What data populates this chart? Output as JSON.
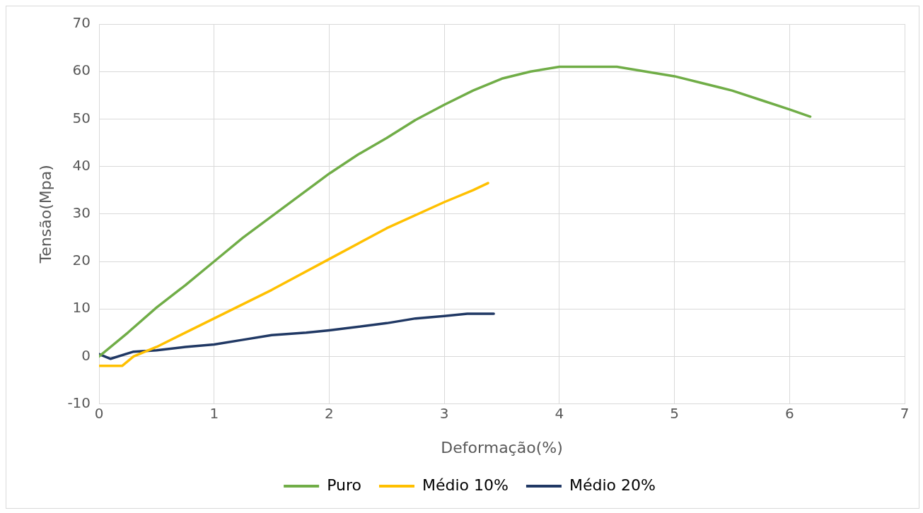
{
  "chart_data": {
    "type": "line",
    "xlabel": "Deformação(%)",
    "ylabel": "Tensão(Mpa)",
    "xlim": [
      0,
      7
    ],
    "xticks": [
      0,
      1,
      2,
      3,
      4,
      5,
      6,
      7
    ],
    "ylim": [
      -10,
      70
    ],
    "yticks": [
      -10,
      0,
      10,
      20,
      30,
      40,
      50,
      60,
      70
    ],
    "grid": true,
    "legend": "bottom",
    "marker": "none",
    "line_style": "solid",
    "series": [
      {
        "name": "Puro",
        "color": "#70ad47",
        "x": [
          0,
          0.25,
          0.5,
          0.75,
          1,
          1.25,
          1.5,
          1.75,
          2,
          2.25,
          2.5,
          2.75,
          3,
          3.25,
          3.5,
          3.75,
          4,
          4.25,
          4.5,
          4.75,
          5,
          5.25,
          5.5,
          5.75,
          6,
          6.18
        ],
        "values": [
          0,
          5,
          10.3,
          15,
          20,
          25,
          29.5,
          34,
          38.5,
          42.5,
          46,
          49.8,
          53,
          56,
          58.5,
          60,
          61,
          61,
          61,
          60,
          59,
          57.5,
          56,
          54,
          52,
          50.5
        ]
      },
      {
        "name": "Médio 10%",
        "color": "#ffc000",
        "x": [
          0,
          0.2,
          0.3,
          0.5,
          1,
          1.5,
          2,
          2.5,
          3,
          3.25,
          3.38
        ],
        "values": [
          -2,
          -2,
          0,
          2,
          8,
          14,
          20.5,
          27,
          32.5,
          35,
          36.5
        ]
      },
      {
        "name": "Médio 20%",
        "color": "#203864",
        "x": [
          0,
          0.1,
          0.3,
          0.5,
          0.75,
          1,
          1.25,
          1.5,
          1.8,
          2,
          2.5,
          2.75,
          3,
          3.2,
          3.43
        ],
        "values": [
          0.5,
          -0.5,
          1,
          1.3,
          2,
          2.5,
          3.5,
          4.5,
          5,
          5.5,
          7,
          8,
          8.5,
          9,
          9
        ]
      }
    ]
  }
}
